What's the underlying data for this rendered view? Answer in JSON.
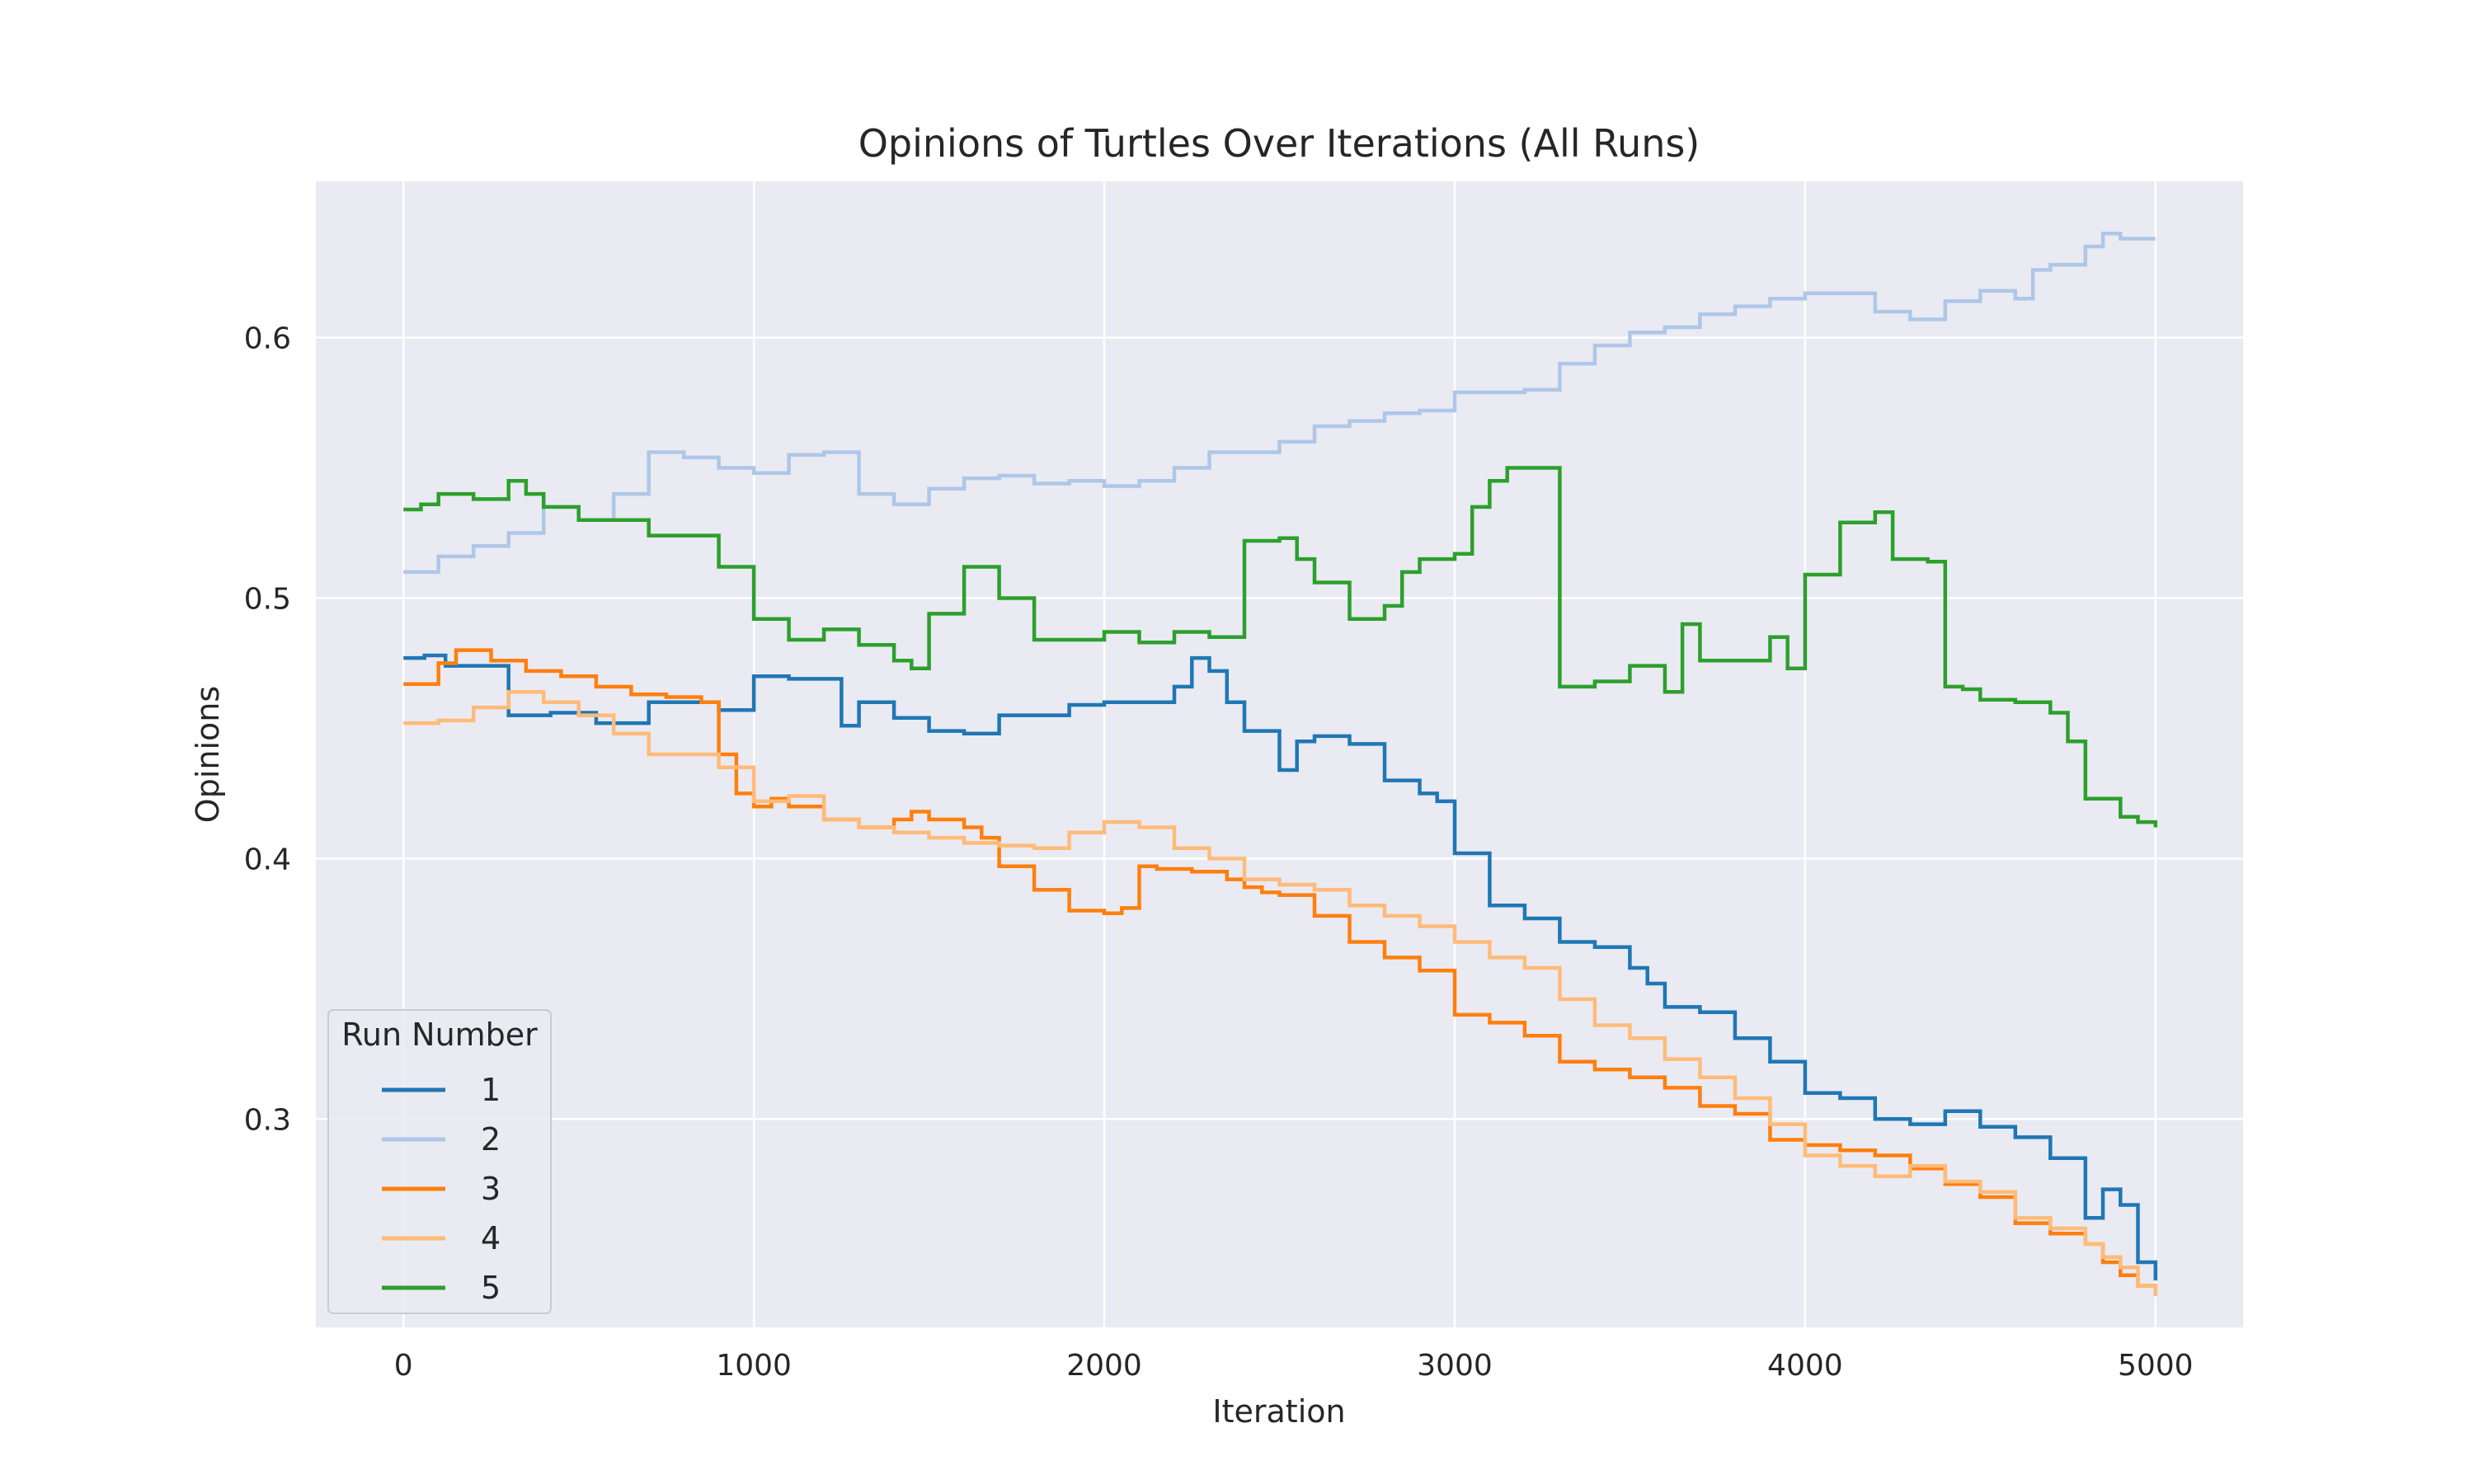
{
  "chart_data": {
    "type": "line",
    "title": "Opinions of Turtles Over Iterations (All Runs)",
    "xlabel": "Iteration",
    "ylabel": "Opinions",
    "xlim": [
      -250,
      5250
    ],
    "ylim": [
      0.22,
      0.66
    ],
    "xticks": [
      "0",
      "1000",
      "2000",
      "3000",
      "4000",
      "5000"
    ],
    "yticks": [
      "0.3",
      "0.4",
      "0.5",
      "0.6"
    ],
    "grid": true,
    "legend": {
      "title": "Run Number",
      "placement": "bottom-left"
    },
    "series": [
      {
        "name": "1",
        "color": "#1f77b4",
        "x": [
          0,
          60,
          120,
          300,
          420,
          550,
          700,
          900,
          1000,
          1100,
          1250,
          1300,
          1400,
          1500,
          1600,
          1700,
          1800,
          1900,
          2000,
          2100,
          2200,
          2250,
          2300,
          2350,
          2400,
          2500,
          2550,
          2600,
          2700,
          2800,
          2900,
          2950,
          3000,
          3100,
          3200,
          3300,
          3400,
          3500,
          3550,
          3600,
          3700,
          3800,
          3900,
          4000,
          4100,
          4200,
          4300,
          4400,
          4500,
          4600,
          4700,
          4800,
          4850,
          4900,
          4950,
          5000
        ],
        "y": [
          0.477,
          0.478,
          0.474,
          0.455,
          0.456,
          0.452,
          0.46,
          0.457,
          0.47,
          0.469,
          0.451,
          0.46,
          0.454,
          0.449,
          0.448,
          0.455,
          0.455,
          0.459,
          0.46,
          0.46,
          0.466,
          0.477,
          0.472,
          0.46,
          0.449,
          0.434,
          0.445,
          0.447,
          0.444,
          0.43,
          0.425,
          0.422,
          0.402,
          0.382,
          0.377,
          0.368,
          0.366,
          0.358,
          0.352,
          0.343,
          0.341,
          0.331,
          0.322,
          0.31,
          0.308,
          0.3,
          0.298,
          0.303,
          0.297,
          0.293,
          0.285,
          0.262,
          0.273,
          0.267,
          0.245,
          0.238
        ]
      },
      {
        "name": "2",
        "color": "#aec7e8",
        "x": [
          0,
          100,
          200,
          300,
          400,
          500,
          600,
          700,
          800,
          900,
          1000,
          1100,
          1200,
          1300,
          1400,
          1500,
          1600,
          1700,
          1800,
          1900,
          2000,
          2100,
          2200,
          2300,
          2400,
          2500,
          2600,
          2700,
          2800,
          2900,
          3000,
          3100,
          3200,
          3300,
          3400,
          3500,
          3600,
          3700,
          3800,
          3900,
          4000,
          4100,
          4200,
          4300,
          4400,
          4500,
          4600,
          4650,
          4700,
          4800,
          4850,
          4900,
          5000
        ],
        "y": [
          0.51,
          0.516,
          0.52,
          0.525,
          0.535,
          0.53,
          0.54,
          0.556,
          0.554,
          0.55,
          0.548,
          0.555,
          0.556,
          0.54,
          0.536,
          0.542,
          0.546,
          0.547,
          0.544,
          0.545,
          0.543,
          0.545,
          0.55,
          0.556,
          0.556,
          0.56,
          0.566,
          0.568,
          0.571,
          0.572,
          0.579,
          0.579,
          0.58,
          0.59,
          0.597,
          0.602,
          0.604,
          0.609,
          0.612,
          0.615,
          0.617,
          0.617,
          0.61,
          0.607,
          0.614,
          0.618,
          0.615,
          0.626,
          0.628,
          0.635,
          0.64,
          0.638,
          0.638
        ]
      },
      {
        "name": "3",
        "color": "#ff7f0e",
        "x": [
          0,
          100,
          150,
          250,
          350,
          450,
          550,
          650,
          750,
          850,
          900,
          950,
          1000,
          1050,
          1100,
          1200,
          1300,
          1400,
          1450,
          1500,
          1600,
          1650,
          1700,
          1800,
          1900,
          2000,
          2050,
          2100,
          2150,
          2250,
          2350,
          2400,
          2450,
          2500,
          2600,
          2700,
          2800,
          2900,
          3000,
          3100,
          3200,
          3300,
          3400,
          3500,
          3600,
          3700,
          3800,
          3900,
          4000,
          4100,
          4200,
          4300,
          4400,
          4500,
          4600,
          4700,
          4800,
          4850,
          4900,
          4950,
          5000
        ],
        "y": [
          0.467,
          0.475,
          0.48,
          0.476,
          0.472,
          0.47,
          0.466,
          0.463,
          0.462,
          0.46,
          0.44,
          0.425,
          0.42,
          0.423,
          0.42,
          0.415,
          0.412,
          0.415,
          0.418,
          0.415,
          0.412,
          0.408,
          0.397,
          0.388,
          0.38,
          0.379,
          0.381,
          0.397,
          0.396,
          0.395,
          0.392,
          0.389,
          0.387,
          0.386,
          0.378,
          0.368,
          0.362,
          0.357,
          0.34,
          0.337,
          0.332,
          0.322,
          0.319,
          0.316,
          0.312,
          0.305,
          0.302,
          0.292,
          0.29,
          0.288,
          0.286,
          0.281,
          0.275,
          0.27,
          0.26,
          0.256,
          0.252,
          0.245,
          0.24,
          0.236,
          0.233
        ]
      },
      {
        "name": "4",
        "color": "#ffbb78",
        "x": [
          0,
          100,
          200,
          300,
          400,
          500,
          600,
          700,
          800,
          900,
          1000,
          1100,
          1200,
          1300,
          1400,
          1500,
          1600,
          1700,
          1800,
          1900,
          2000,
          2100,
          2200,
          2300,
          2400,
          2500,
          2600,
          2700,
          2800,
          2900,
          3000,
          3100,
          3200,
          3300,
          3400,
          3500,
          3600,
          3700,
          3800,
          3900,
          4000,
          4100,
          4200,
          4300,
          4400,
          4500,
          4600,
          4700,
          4800,
          4850,
          4900,
          4950,
          5000
        ],
        "y": [
          0.452,
          0.453,
          0.458,
          0.464,
          0.46,
          0.455,
          0.448,
          0.44,
          0.44,
          0.435,
          0.422,
          0.424,
          0.415,
          0.412,
          0.41,
          0.408,
          0.406,
          0.405,
          0.404,
          0.41,
          0.414,
          0.412,
          0.404,
          0.4,
          0.392,
          0.39,
          0.388,
          0.382,
          0.378,
          0.374,
          0.368,
          0.362,
          0.358,
          0.346,
          0.336,
          0.331,
          0.323,
          0.316,
          0.308,
          0.298,
          0.286,
          0.282,
          0.278,
          0.282,
          0.276,
          0.272,
          0.262,
          0.258,
          0.252,
          0.247,
          0.243,
          0.236,
          0.232
        ]
      },
      {
        "name": "5",
        "color": "#2ca02c",
        "x": [
          0,
          50,
          100,
          200,
          300,
          350,
          400,
          500,
          600,
          700,
          900,
          1000,
          1100,
          1200,
          1300,
          1400,
          1450,
          1500,
          1600,
          1700,
          1800,
          1900,
          2000,
          2100,
          2200,
          2300,
          2400,
          2500,
          2550,
          2600,
          2700,
          2800,
          2850,
          2900,
          3000,
          3050,
          3100,
          3150,
          3200,
          3300,
          3400,
          3500,
          3600,
          3650,
          3700,
          3800,
          3900,
          3950,
          4000,
          4100,
          4200,
          4250,
          4350,
          4400,
          4450,
          4500,
          4600,
          4700,
          4750,
          4800,
          4900,
          4950,
          5000
        ],
        "y": [
          0.534,
          0.536,
          0.54,
          0.538,
          0.545,
          0.54,
          0.535,
          0.53,
          0.53,
          0.524,
          0.512,
          0.492,
          0.484,
          0.488,
          0.482,
          0.476,
          0.473,
          0.494,
          0.512,
          0.5,
          0.484,
          0.484,
          0.487,
          0.483,
          0.487,
          0.485,
          0.522,
          0.523,
          0.515,
          0.506,
          0.492,
          0.497,
          0.51,
          0.515,
          0.517,
          0.535,
          0.545,
          0.55,
          0.55,
          0.466,
          0.468,
          0.474,
          0.464,
          0.49,
          0.476,
          0.476,
          0.485,
          0.473,
          0.509,
          0.529,
          0.533,
          0.515,
          0.514,
          0.466,
          0.465,
          0.461,
          0.46,
          0.456,
          0.445,
          0.423,
          0.416,
          0.414,
          0.412
        ]
      }
    ]
  }
}
